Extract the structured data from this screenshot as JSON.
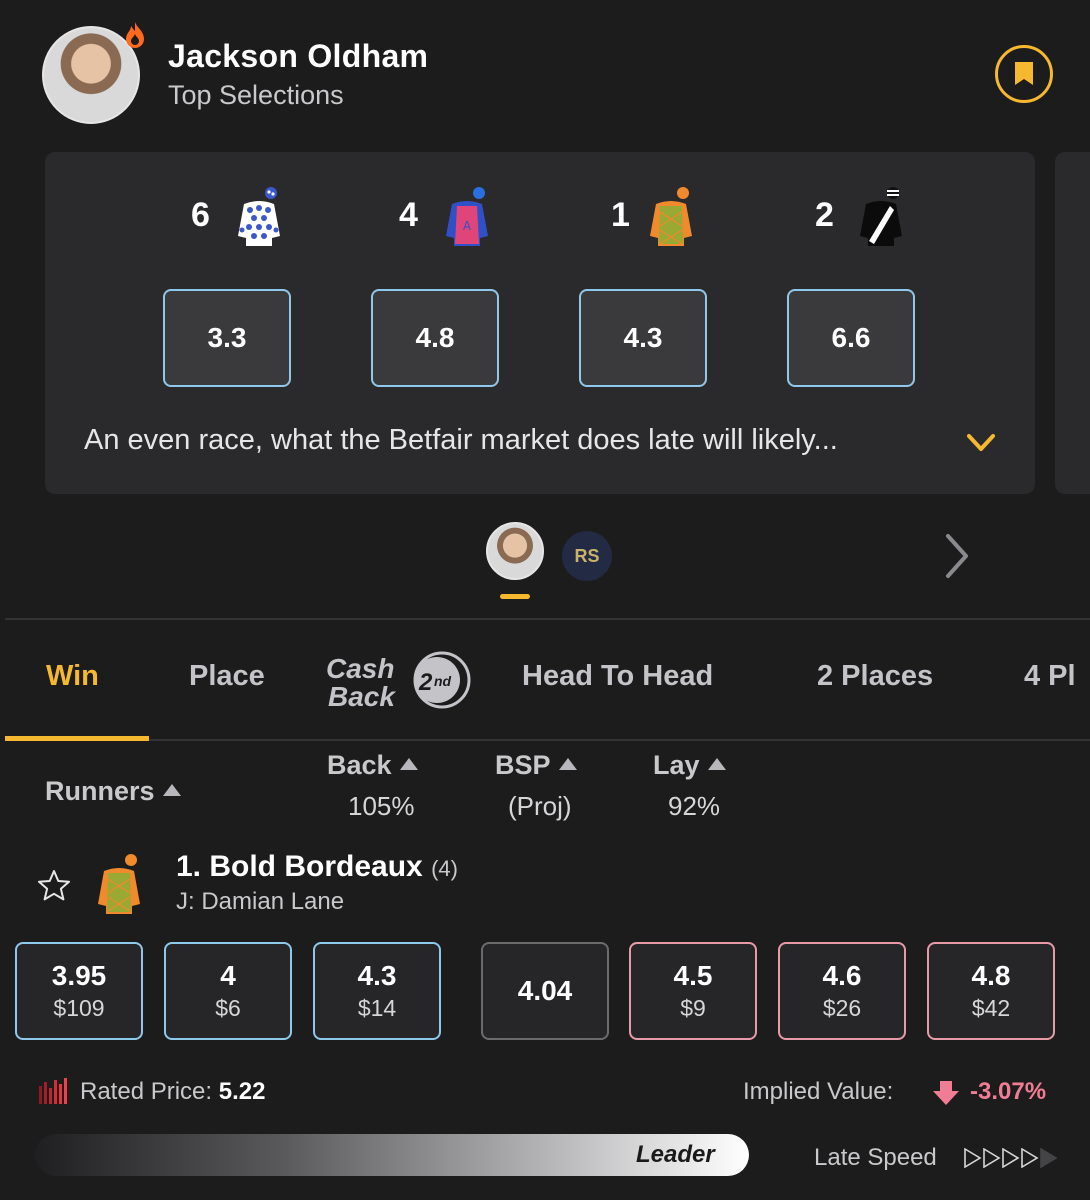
{
  "tipster": {
    "name": "Jackson Oldham",
    "subtitle": "Top Selections",
    "comment": "An even race, what the Betfair market does late will likely..."
  },
  "selections": [
    {
      "number": "6",
      "odds": "3.3",
      "silk": "white-blue-spots-silk"
    },
    {
      "number": "4",
      "odds": "4.8",
      "silk": "blue-pink-silk"
    },
    {
      "number": "1",
      "odds": "4.3",
      "silk": "orange-green-check-silk"
    },
    {
      "number": "2",
      "odds": "6.6",
      "silk": "black-white-sash-silk"
    }
  ],
  "switcher": {
    "logo_text": "RS"
  },
  "tabs": [
    {
      "label": "Win",
      "active": true
    },
    {
      "label": "Place"
    },
    {
      "label": "Cash Back 2nd"
    },
    {
      "label": "Head To Head"
    },
    {
      "label": "2 Places"
    },
    {
      "label": "4 Pl"
    }
  ],
  "columns": {
    "runners": "Runners",
    "back": "Back",
    "back_pct": "105%",
    "bsp": "BSP",
    "bsp_sub": "(Proj)",
    "lay": "Lay",
    "lay_pct": "92%"
  },
  "runner": {
    "name": "1. Bold Bordeaux",
    "barrier": "(4)",
    "jockey": "J: Damian Lane",
    "back_prices": [
      {
        "odds": "3.95",
        "amount": "$109"
      },
      {
        "odds": "4",
        "amount": "$6"
      },
      {
        "odds": "4.3",
        "amount": "$14"
      }
    ],
    "bsp": "4.04",
    "lay_prices": [
      {
        "odds": "4.5",
        "amount": "$9"
      },
      {
        "odds": "4.6",
        "amount": "$26"
      },
      {
        "odds": "4.8",
        "amount": "$42"
      }
    ],
    "rated_price_label": "Rated Price:",
    "rated_price": "5.22",
    "implied_value_label": "Implied Value:",
    "implied_value": "-3.07%",
    "speed_map_label": "Leader",
    "late_speed_label": "Late Speed",
    "late_speed_level": 4,
    "late_speed_max": 5
  },
  "colors": {
    "accent": "#f5b82e",
    "back_border": "#8ec8ea",
    "lay_border": "#e99aa8",
    "negative": "#f07d94",
    "background": "#1c1c1d"
  }
}
